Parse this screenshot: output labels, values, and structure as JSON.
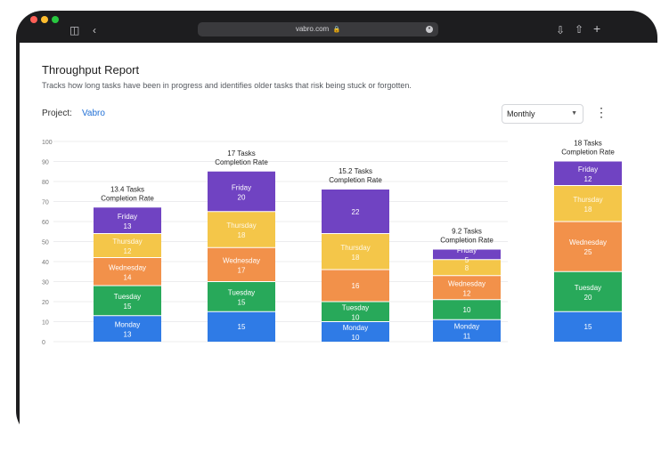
{
  "browser": {
    "url": "vabro.com",
    "icons": [
      "sidebar-icon",
      "back-icon",
      "lock-icon",
      "download-icon",
      "share-icon",
      "new-tab-icon"
    ]
  },
  "report": {
    "title": "Throughput Report",
    "subtitle": "Tracks how long tasks have been in progress and identifies older tasks that risk being stuck or forgotten.",
    "project_label": "Project:",
    "project_name": "Vabro",
    "period": "Monthly",
    "more_icon": "more-vertical-icon"
  },
  "colors": {
    "Monday": "#2f7be6",
    "Tuesday": "#28a95a",
    "Wednesday": "#f2914a",
    "Thursday": "#f4c649",
    "Friday": "#7043c2"
  },
  "chart_data": {
    "type": "bar",
    "stacked": true,
    "ylim": [
      0,
      100
    ],
    "yticks": [
      0,
      10,
      20,
      30,
      40,
      50,
      60,
      70,
      80,
      90,
      100
    ],
    "grid": true,
    "bars": [
      {
        "tasks": "13.4 Tasks",
        "rate": "Completion Rate",
        "segments": [
          {
            "day": "Monday",
            "label": "Monday",
            "value": "13",
            "v": 13
          },
          {
            "day": "Tuesday",
            "label": "Tuesday",
            "value": "15",
            "v": 15
          },
          {
            "day": "Wednesday",
            "label": "Wednesday",
            "value": "14",
            "v": 14
          },
          {
            "day": "Thursday",
            "label": "Thursday",
            "value": "12",
            "v": 12
          },
          {
            "day": "Friday",
            "label": "Friday",
            "value": "13",
            "v": 13
          }
        ]
      },
      {
        "tasks": "17 Tasks",
        "rate": "Completion Rate",
        "segments": [
          {
            "day": "Monday",
            "label": "",
            "value": "15",
            "v": 15
          },
          {
            "day": "Tuesday",
            "label": "Tuesday",
            "value": "15",
            "v": 15
          },
          {
            "day": "Wednesday",
            "label": "Wednesday",
            "value": "17",
            "v": 17
          },
          {
            "day": "Thursday",
            "label": "Thursday",
            "value": "18",
            "v": 18
          },
          {
            "day": "Friday",
            "label": "Friday",
            "value": "20",
            "v": 20
          }
        ]
      },
      {
        "tasks": "15.2 Tasks",
        "rate": "Completion Rate",
        "segments": [
          {
            "day": "Monday",
            "label": "Monday",
            "value": "10",
            "v": 10
          },
          {
            "day": "Tuesday",
            "label": "Tuesday",
            "value": "10",
            "v": 10
          },
          {
            "day": "Wednesday",
            "label": "",
            "value": "16",
            "v": 16
          },
          {
            "day": "Thursday",
            "label": "Thursday",
            "value": "18",
            "v": 18
          },
          {
            "day": "Friday",
            "label": "",
            "value": "22",
            "v": 22
          }
        ]
      },
      {
        "tasks": "9.2 Tasks",
        "rate": "Completion Rate",
        "segments": [
          {
            "day": "Monday",
            "label": "Monday",
            "value": "11",
            "v": 11
          },
          {
            "day": "Tuesday",
            "label": "",
            "value": "10",
            "v": 10
          },
          {
            "day": "Wednesday",
            "label": "Wednesday",
            "value": "12",
            "v": 12
          },
          {
            "day": "Thursday",
            "label": "",
            "value": "8",
            "v": 8
          },
          {
            "day": "Friday",
            "label": "Friday",
            "value": "5",
            "v": 5
          }
        ]
      },
      {
        "tasks": "18 Tasks",
        "rate": "Completion Rate",
        "segments": [
          {
            "day": "Monday",
            "label": "",
            "value": "15",
            "v": 15
          },
          {
            "day": "Tuesday",
            "label": "Tuesday",
            "value": "20",
            "v": 20
          },
          {
            "day": "Wednesday",
            "label": "Wednesday",
            "value": "25",
            "v": 25
          },
          {
            "day": "Thursday",
            "label": "Thursday",
            "value": "18",
            "v": 18
          },
          {
            "day": "Friday",
            "label": "Friday",
            "value": "12",
            "v": 12
          }
        ]
      }
    ]
  }
}
